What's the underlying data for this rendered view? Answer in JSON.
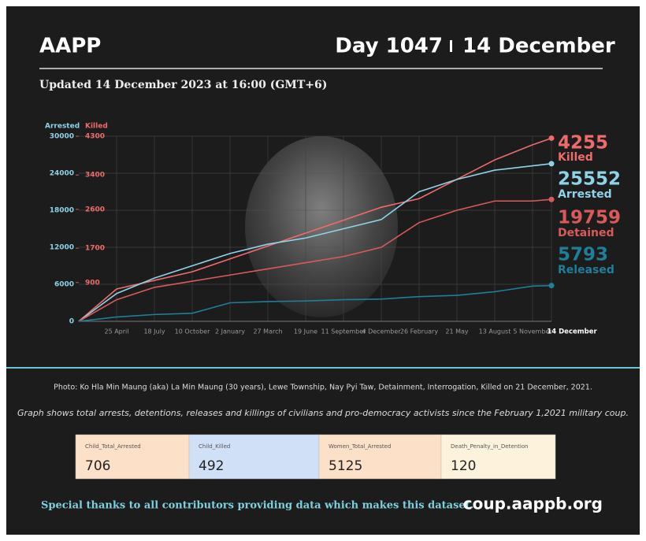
{
  "header": {
    "title": "AAPP",
    "day": "Day 1047",
    "date": "14 December",
    "updated": "Updated 14 December 2023 at 16:00 (GMT+6)"
  },
  "chart_data": {
    "type": "line",
    "y_label": "Arrested",
    "y2_label": "Killed",
    "categories": [
      null,
      "25 April",
      "18 July",
      "10 October",
      "2 January",
      "27 March",
      "19 June",
      "11 September",
      "4 December",
      "26 February",
      "21 May",
      "13 August",
      "5 November",
      "14 December"
    ],
    "ylim": [
      0,
      30000
    ],
    "yticks": [
      0,
      6000,
      12000,
      18000,
      24000,
      30000
    ],
    "y2lim": [
      0,
      4300
    ],
    "y2ticks": [
      900,
      1700,
      2600,
      3400,
      4300
    ],
    "grid": true,
    "series": [
      {
        "name": "Killed",
        "color": "#ef6b6b",
        "axis": "y2",
        "values": [
          0,
          750,
          950,
          1150,
          1450,
          1750,
          2050,
          2350,
          2650,
          2850,
          3300,
          3750,
          4100,
          4255
        ]
      },
      {
        "name": "Arrested",
        "color": "#8fd3e8",
        "values": [
          0,
          4500,
          7000,
          9000,
          11000,
          12500,
          13500,
          15000,
          16500,
          21000,
          23000,
          24500,
          25200,
          25552
        ]
      },
      {
        "name": "Detained",
        "color": "#d95a5a",
        "values": [
          0,
          3500,
          5500,
          6500,
          7500,
          8500,
          9500,
          10500,
          12000,
          16000,
          18000,
          19500,
          19500,
          19759
        ]
      },
      {
        "name": "Released",
        "color": "#1f7f99",
        "values": [
          0,
          700,
          1100,
          1300,
          3000,
          3200,
          3300,
          3500,
          3600,
          4000,
          4200,
          4800,
          5700,
          5793
        ]
      }
    ]
  },
  "caption": "Photo: Ko Hla Min Maung (aka) La Min Maung (30 years), Lewe Township, Nay Pyi Taw, Detainment, Interrogation, Killed on 21 December, 2021.",
  "note": "Graph shows total arrests, detentions, releases and killings of civilians and pro-democracy activists since the February 1,2021 military coup.",
  "stats": [
    {
      "label": "Child_Total_Arrested",
      "value": "706"
    },
    {
      "label": "Child_Killed",
      "value": "492"
    },
    {
      "label": "Women_Total_Arrested",
      "value": "5125"
    },
    {
      "label": "Death_Penalty_in_Detention",
      "value": "120"
    }
  ],
  "footer": {
    "thanks": "Special thanks to all contributors providing data which makes this dataset.",
    "url": "coup.aappb.org"
  }
}
